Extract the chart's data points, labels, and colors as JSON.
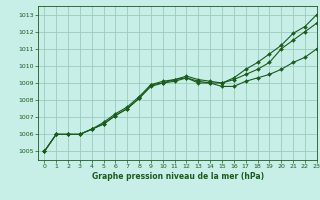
{
  "xlabel": "Graphe pression niveau de la mer (hPa)",
  "bg_color": "#c8eee8",
  "grid_color": "#99ccbb",
  "line_color": "#1a5c1a",
  "xlim": [
    -0.5,
    23
  ],
  "ylim": [
    1004.5,
    1013.5
  ],
  "yticks": [
    1005,
    1006,
    1007,
    1008,
    1009,
    1010,
    1011,
    1012,
    1013
  ],
  "xticks": [
    0,
    1,
    2,
    3,
    4,
    5,
    6,
    7,
    8,
    9,
    10,
    11,
    12,
    13,
    14,
    15,
    16,
    17,
    18,
    19,
    20,
    21,
    22,
    23
  ],
  "series": [
    [
      1005.0,
      1006.0,
      1006.0,
      1006.0,
      1006.3,
      1006.6,
      1007.1,
      1007.5,
      1008.1,
      1008.8,
      1009.0,
      1009.1,
      1009.3,
      1009.0,
      1009.0,
      1008.8,
      1008.8,
      1009.1,
      1009.3,
      1009.5,
      1009.8,
      1010.2,
      1010.5,
      1011.0
    ],
    [
      1005.0,
      1006.0,
      1006.0,
      1006.0,
      1006.3,
      1006.6,
      1007.1,
      1007.5,
      1008.1,
      1008.9,
      1009.0,
      1009.2,
      1009.3,
      1009.1,
      1009.0,
      1009.0,
      1009.2,
      1009.5,
      1009.8,
      1010.2,
      1011.0,
      1011.5,
      1012.0,
      1012.5
    ],
    [
      1005.0,
      1006.0,
      1006.0,
      1006.0,
      1006.3,
      1006.7,
      1007.2,
      1007.6,
      1008.2,
      1008.9,
      1009.1,
      1009.2,
      1009.4,
      1009.2,
      1009.1,
      1009.0,
      1009.3,
      1009.8,
      1010.2,
      1010.7,
      1011.2,
      1011.9,
      1012.3,
      1013.0
    ]
  ]
}
